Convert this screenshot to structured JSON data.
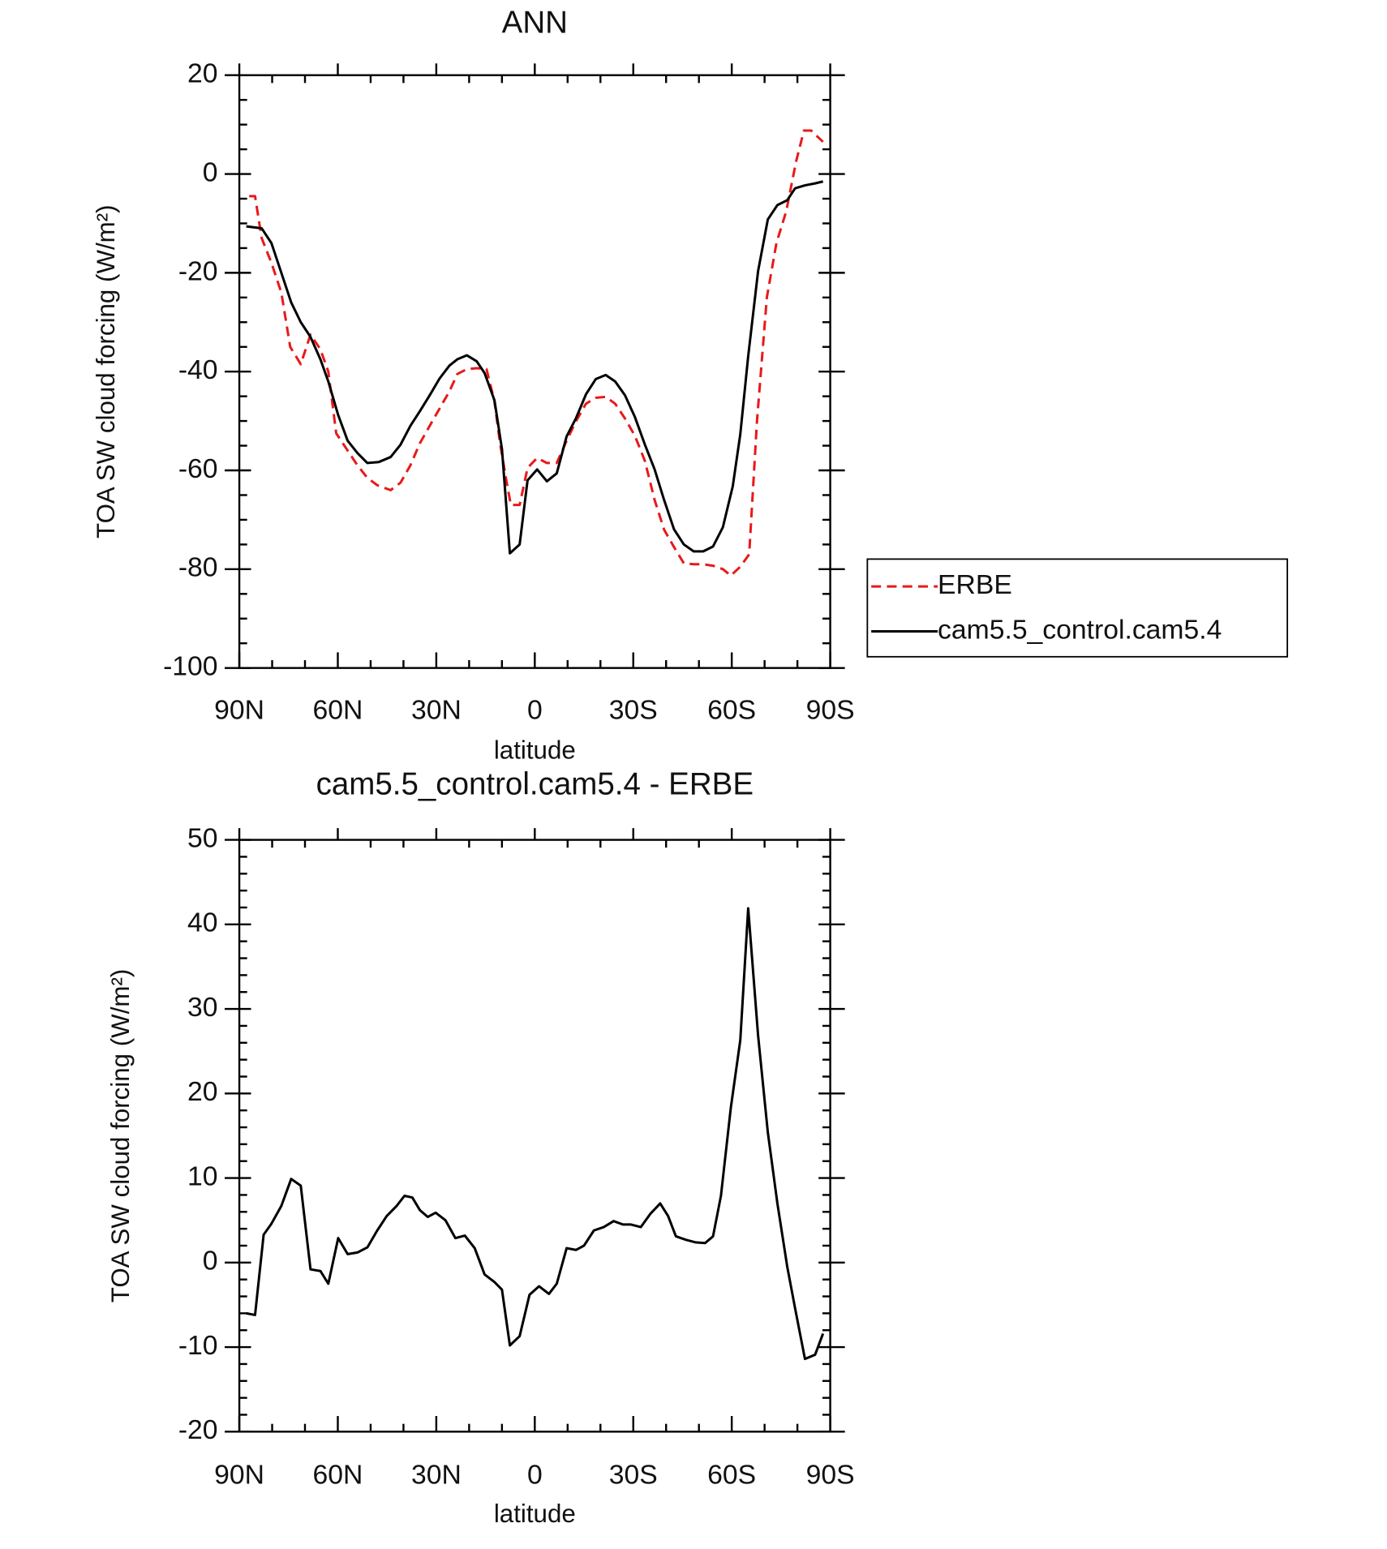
{
  "chart_data": [
    {
      "type": "line",
      "title": "ANN",
      "xlabel": "latitude",
      "ylabel": "TOA SW cloud forcing (W/m²)",
      "xlim": [
        90,
        -90
      ],
      "xticks": [
        {
          "value": 90,
          "label": "90N"
        },
        {
          "value": 60,
          "label": "60N"
        },
        {
          "value": 30,
          "label": "30N"
        },
        0,
        {
          "value": -30,
          "label": "30S"
        },
        {
          "value": -60,
          "label": "60S"
        },
        {
          "value": -90,
          "label": "90S"
        }
      ],
      "ylim": [
        20,
        -100
      ],
      "yticks": [
        20,
        0,
        -20,
        -40,
        -60,
        -80,
        -100
      ],
      "legend": "right",
      "series": [
        {
          "name": "ERBE",
          "color": "#e8191b",
          "linestyle": "dashed",
          "x": [
            87.0,
            85.2,
            83.2,
            80.2,
            77.2,
            74.5,
            71.3,
            68.3,
            65.3,
            62.9,
            60.5,
            57.0,
            54.0,
            51.0,
            48.0,
            43.9,
            40.9,
            37.9,
            35.0,
            32.0,
            29.0,
            26.0,
            23.6,
            20.7,
            17.7,
            14.7,
            12.3,
            10.6,
            8.8,
            7.3,
            4.6,
            2.2,
            -0.7,
            -3.7,
            -6.7,
            -9.7,
            -12.6,
            -15.6,
            -18.6,
            -21.6,
            -24.5,
            -27.5,
            -30.5,
            -33.5,
            -36.5,
            -39.4,
            -42.4,
            -45.4,
            -48.4,
            -51.3,
            -54.3,
            -57.3,
            -59.7,
            -62.6,
            -65.3,
            -67.7,
            -70.7,
            -73.6,
            -76.6,
            -79.6,
            -82.0,
            -84.2,
            -87.8
          ],
          "values": [
            -4.5,
            -4.5,
            -13,
            -18,
            -24,
            -35,
            -38.5,
            -32.5,
            -35.5,
            -40,
            -52.5,
            -56,
            -59,
            -61.5,
            -63,
            -64,
            -62.5,
            -59,
            -54.5,
            -51,
            -47.5,
            -44,
            -40.5,
            -39.5,
            -39.3,
            -39.5,
            -46,
            -54.5,
            -61.5,
            -67,
            -67,
            -59.5,
            -57.5,
            -58.5,
            -58.5,
            -54,
            -50,
            -46.5,
            -45.3,
            -45.1,
            -46.5,
            -49.5,
            -53,
            -58,
            -66,
            -72,
            -75.5,
            -78.8,
            -79,
            -79,
            -79.3,
            -80,
            -81.3,
            -79.5,
            -77,
            -50,
            -25,
            -14,
            -7.5,
            2.5,
            8.8,
            8.8,
            6.5
          ]
        },
        {
          "name": "cam5.5_control.cam5.4",
          "color": "#000000",
          "linestyle": "solid",
          "x": [
            87.9,
            83.2,
            80.2,
            77.2,
            74.2,
            71.3,
            68.3,
            65.3,
            62.9,
            59.9,
            57.0,
            54.0,
            51.0,
            47.5,
            43.9,
            40.9,
            37.9,
            35.0,
            32.0,
            29.0,
            26.0,
            23.6,
            20.7,
            17.7,
            15.3,
            12.3,
            10.0,
            7.6,
            4.6,
            2.2,
            -0.7,
            -3.7,
            -6.7,
            -9.7,
            -12.6,
            -15.6,
            -18.6,
            -21.6,
            -24.5,
            -27.5,
            -30.5,
            -33.5,
            -36.5,
            -39.4,
            -42.4,
            -45.4,
            -48.4,
            -51.3,
            -54.3,
            -57.3,
            -60.3,
            -62.6,
            -65.0,
            -68.0,
            -71.0,
            -73.9,
            -76.9,
            -79.3,
            -82.3,
            -85.4,
            -87.8
          ],
          "values": [
            -10.6,
            -11,
            -14,
            -20,
            -26,
            -30,
            -33,
            -37.5,
            -42,
            -48.8,
            -54,
            -56.5,
            -58.5,
            -58.3,
            -57.3,
            -54.8,
            -51,
            -48,
            -44.8,
            -41.4,
            -38.8,
            -37.5,
            -36.7,
            -37.9,
            -40.3,
            -45.8,
            -55.7,
            -76.8,
            -75,
            -62,
            -59.8,
            -62.2,
            -60.6,
            -53.1,
            -49.4,
            -44.6,
            -41.5,
            -40.7,
            -42,
            -44.8,
            -49.2,
            -54.7,
            -59.8,
            -66,
            -71.9,
            -75,
            -76.4,
            -76.4,
            -75.4,
            -71.5,
            -63.2,
            -52.7,
            -36.9,
            -19.7,
            -9.2,
            -6.3,
            -5.3,
            -2.9,
            -2.3,
            -1.9,
            -1.5
          ]
        }
      ]
    },
    {
      "type": "line",
      "title": "cam5.5_control.cam5.4 - ERBE",
      "xlabel": "latitude",
      "ylabel": "TOA SW cloud forcing (W/m²)",
      "xlim": [
        90,
        -90
      ],
      "xticks": [
        {
          "value": 90,
          "label": "90N"
        },
        {
          "value": 60,
          "label": "60N"
        },
        {
          "value": 30,
          "label": "30N"
        },
        0,
        {
          "value": -30,
          "label": "30S"
        },
        {
          "value": -60,
          "label": "60S"
        },
        {
          "value": -90,
          "label": "90S"
        }
      ],
      "ylim": [
        50,
        -20
      ],
      "yticks": [
        50,
        40,
        30,
        20,
        10,
        0,
        -10,
        -20
      ],
      "series": [
        {
          "color": "#000000",
          "linestyle": "solid",
          "x": [
            87.9,
            85.2,
            82.6,
            80.2,
            77.2,
            74.2,
            71.3,
            68.3,
            65.3,
            62.9,
            59.9,
            57.0,
            54.0,
            51.0,
            48.0,
            45.1,
            42.1,
            39.7,
            37.3,
            35.0,
            32.6,
            30.2,
            27.2,
            24.2,
            21.3,
            18.3,
            15.3,
            12.3,
            10.0,
            7.6,
            4.6,
            1.6,
            -1.3,
            -4.3,
            -6.7,
            -9.7,
            -12.6,
            -15.0,
            -18.0,
            -21.0,
            -24.0,
            -26.9,
            -29.3,
            -32.3,
            -35.3,
            -38.2,
            -40.6,
            -43.0,
            -46.0,
            -48.9,
            -51.9,
            -54.3,
            -56.7,
            -59.7,
            -62.6,
            -65.0,
            -68.0,
            -71.0,
            -73.9,
            -76.9,
            -79.3,
            -82.3,
            -85.4,
            -87.8
          ],
          "values": [
            -6.0,
            -6.2,
            3.3,
            4.6,
            6.7,
            9.9,
            9.1,
            -0.8,
            -1.0,
            -2.5,
            2.9,
            1.0,
            1.2,
            1.8,
            3.8,
            5.5,
            6.7,
            7.9,
            7.7,
            6.2,
            5.4,
            5.9,
            5.0,
            2.9,
            3.2,
            1.7,
            -1.4,
            -2.3,
            -3.2,
            -9.8,
            -8.7,
            -3.8,
            -2.8,
            -3.7,
            -2.5,
            1.7,
            1.5,
            2.0,
            3.8,
            4.2,
            4.9,
            4.5,
            4.5,
            4.2,
            5.8,
            7.0,
            5.5,
            3.1,
            2.7,
            2.4,
            2.3,
            3.1,
            7.9,
            18.3,
            26.3,
            41.9,
            26.9,
            15.4,
            7.0,
            -0.5,
            -5.4,
            -11.4,
            -10.9,
            -8.4
          ]
        }
      ]
    }
  ]
}
